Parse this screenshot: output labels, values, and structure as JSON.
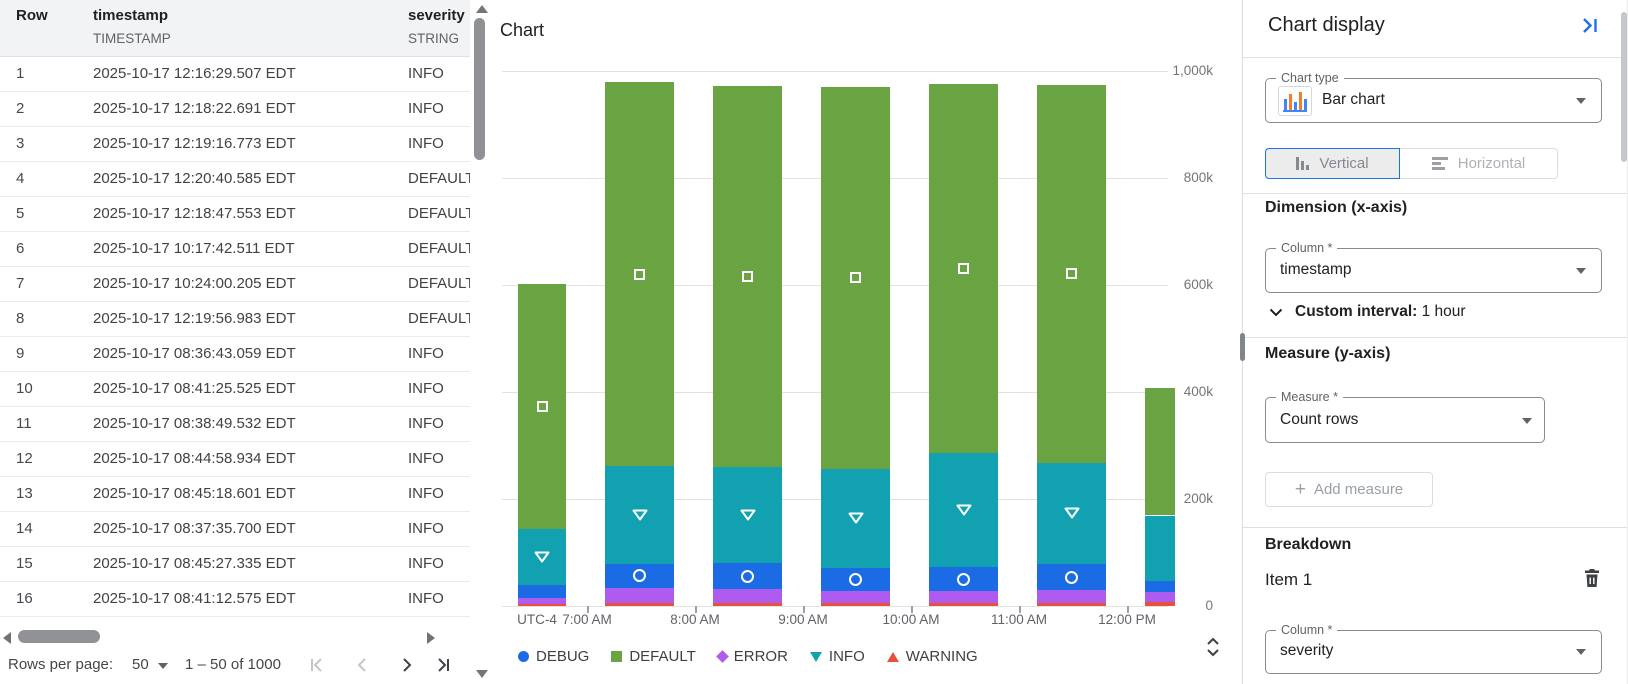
{
  "colors": {
    "accent": "#1a73e8",
    "header_bg": "#f1f3f4",
    "divider": "#dadce0",
    "text_primary": "#202124",
    "text_secondary": "#5f6368"
  },
  "icons": {
    "chart_menu": "kebab-menu",
    "collapse_panel": "collapse-right",
    "expand_chart": "unfold-vertical",
    "delete_item": "trash",
    "dropdown": "caret-down",
    "custom_interval": "chevron-down",
    "pagination": [
      "first-page",
      "previous-page",
      "next-page",
      "last-page"
    ]
  },
  "table": {
    "columns": [
      {
        "name": "Row",
        "type": ""
      },
      {
        "name": "timestamp",
        "type": "TIMESTAMP"
      },
      {
        "name": "severity",
        "type": "STRING"
      }
    ],
    "rows": [
      [
        "1",
        "2025-10-17 12:16:29.507 EDT",
        "INFO"
      ],
      [
        "2",
        "2025-10-17 12:18:22.691 EDT",
        "INFO"
      ],
      [
        "3",
        "2025-10-17 12:19:16.773 EDT",
        "INFO"
      ],
      [
        "4",
        "2025-10-17 12:20:40.585 EDT",
        "DEFAULT"
      ],
      [
        "5",
        "2025-10-17 12:18:47.553 EDT",
        "DEFAULT"
      ],
      [
        "6",
        "2025-10-17 10:17:42.511 EDT",
        "DEFAULT"
      ],
      [
        "7",
        "2025-10-17 10:24:00.205 EDT",
        "DEFAULT"
      ],
      [
        "8",
        "2025-10-17 12:19:56.983 EDT",
        "DEFAULT"
      ],
      [
        "9",
        "2025-10-17 08:36:43.059 EDT",
        "INFO"
      ],
      [
        "10",
        "2025-10-17 08:41:25.525 EDT",
        "INFO"
      ],
      [
        "11",
        "2025-10-17 08:38:49.532 EDT",
        "INFO"
      ],
      [
        "12",
        "2025-10-17 08:44:58.934 EDT",
        "INFO"
      ],
      [
        "13",
        "2025-10-17 08:45:18.601 EDT",
        "INFO"
      ],
      [
        "14",
        "2025-10-17 08:37:35.700 EDT",
        "INFO"
      ],
      [
        "15",
        "2025-10-17 08:45:27.335 EDT",
        "INFO"
      ],
      [
        "16",
        "2025-10-17 08:41:12.575 EDT",
        "INFO"
      ]
    ],
    "pagination": {
      "rows_per_page_label": "Rows per page:",
      "rows_per_page": "50",
      "range_label": "1 – 50 of 1000"
    }
  },
  "chart_panel": {
    "title": "Chart"
  },
  "chart_data": {
    "type": "bar",
    "stacked": true,
    "orientation": "vertical",
    "title": "Chart",
    "x_axis_prefix": "UTC-4",
    "x_tick_labels": [
      "7:00 AM",
      "8:00 AM",
      "9:00 AM",
      "10:00 AM",
      "11:00 AM",
      "12:00 PM"
    ],
    "y_tick_labels": [
      "0",
      "200k",
      "400k",
      "600k",
      "800k",
      "1,000k"
    ],
    "ylim_k": [
      0,
      1000
    ],
    "values_unit": "thousands of rows (count rows per 1 hour interval)",
    "categories": [
      "6:00 AM (partial)",
      "7:00 AM",
      "8:00 AM",
      "9:00 AM",
      "10:00 AM",
      "11:00 AM",
      "12:00 PM (partial)"
    ],
    "series": [
      {
        "name": "DEBUG",
        "color": "#1a6be4",
        "marker": "circle",
        "values_k": [
          24,
          45,
          48,
          42,
          45,
          48,
          19
        ]
      },
      {
        "name": "DEFAULT",
        "color": "#6aa342",
        "marker": "square",
        "values_k": [
          459,
          717,
          712,
          714,
          690,
          705,
          238
        ]
      },
      {
        "name": "ERROR",
        "color": "#ae5cf0",
        "marker": "diamond",
        "values_k": [
          11,
          28,
          27,
          24,
          22,
          25,
          20
        ]
      },
      {
        "name": "INFO",
        "color": "#12a1b0",
        "marker": "triangle-down",
        "values_k": [
          104,
          182,
          180,
          185,
          212,
          190,
          123
        ]
      },
      {
        "name": "WARNING",
        "color": "#e8503c",
        "marker": "triangle-up",
        "values_k": [
          4,
          6,
          5,
          5,
          6,
          5,
          7
        ]
      }
    ],
    "stack_order_bottom_to_top": [
      "WARNING",
      "ERROR",
      "DEBUG",
      "INFO",
      "DEFAULT"
    ],
    "legend_position": "bottom",
    "grid": true
  },
  "settings": {
    "panel_title": "Chart display",
    "chart_type": {
      "label": "Chart type",
      "value": "Bar chart"
    },
    "orientation": {
      "vertical_label": "Vertical",
      "horizontal_label": "Horizontal",
      "selected": "Vertical"
    },
    "dimension": {
      "heading": "Dimension (x-axis)",
      "column_label": "Column *",
      "column_value": "timestamp",
      "custom_interval_label": "Custom interval:",
      "custom_interval_value": "1 hour"
    },
    "measure": {
      "heading": "Measure (y-axis)",
      "measure_label": "Measure *",
      "measure_value": "Count rows",
      "add_measure_label": "Add measure"
    },
    "breakdown": {
      "heading": "Breakdown",
      "item_label": "Item 1",
      "column_label": "Column *",
      "column_value": "severity"
    }
  }
}
